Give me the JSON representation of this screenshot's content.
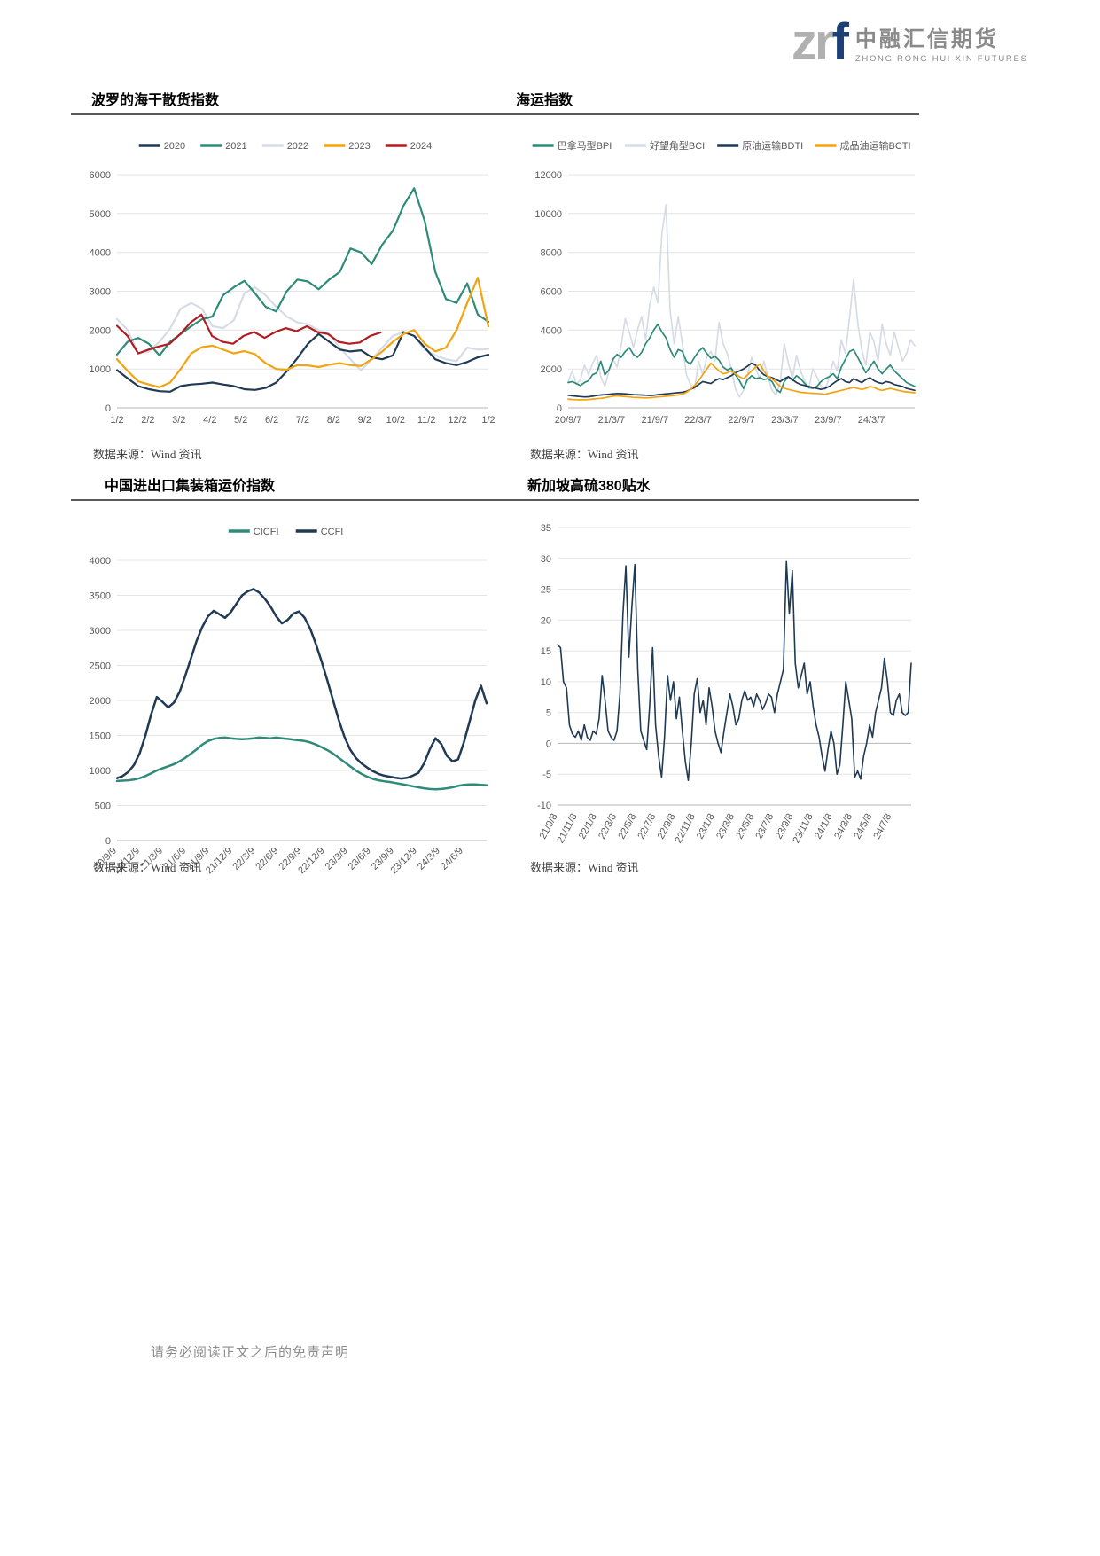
{
  "logo": {
    "mark_zr": "zr",
    "mark_f": "f",
    "cn": "中融汇信期货",
    "en": "ZHONG RONG HUI XIN FUTURES"
  },
  "page": {
    "source_label": "数据来源：Wind 资讯",
    "footer": "请务必阅读正文之后的免责声明"
  },
  "colors": {
    "navy": "#203A53",
    "teal": "#2E8B7A",
    "gray": "#D6DCE5",
    "orange": "#F2A30F",
    "red": "#B01E24"
  },
  "chart_data": [
    {
      "id": "bdi",
      "type": "line",
      "title": "波罗的海干散货指数",
      "ylabel": "",
      "ylim": [
        0,
        6000
      ],
      "yticks": [
        0,
        1000,
        2000,
        3000,
        4000,
        5000,
        6000
      ],
      "xticks": [
        "1/2",
        "2/2",
        "3/2",
        "4/2",
        "5/2",
        "6/2",
        "7/2",
        "8/2",
        "9/2",
        "10/2",
        "11/2",
        "12/2",
        "1/2"
      ],
      "legend_position": "top",
      "grid": true,
      "series": [
        {
          "name": "2020",
          "color": "navy",
          "values": [
            970,
            760,
            560,
            480,
            430,
            415,
            560,
            600,
            620,
            650,
            600,
            560,
            480,
            460,
            510,
            650,
            940,
            1280,
            1650,
            1900,
            1700,
            1500,
            1450,
            1480,
            1300,
            1250,
            1350,
            1950,
            1850,
            1550,
            1250,
            1150,
            1100,
            1180,
            1300,
            1366
          ]
        },
        {
          "name": "2021",
          "color": "teal",
          "values": [
            1374,
            1700,
            1800,
            1650,
            1350,
            1700,
            1900,
            2100,
            2280,
            2350,
            2900,
            3100,
            3266,
            2950,
            2600,
            2480,
            3000,
            3300,
            3250,
            3050,
            3300,
            3500,
            4100,
            4000,
            3700,
            4200,
            4560,
            5200,
            5650,
            4800,
            3500,
            2800,
            2700,
            3200,
            2400,
            2217
          ]
        },
        {
          "name": "2022",
          "color": "gray",
          "behind": true,
          "values": [
            2285,
            2000,
            1400,
            1450,
            1700,
            2040,
            2550,
            2700,
            2550,
            2100,
            2050,
            2250,
            2950,
            3100,
            2900,
            2600,
            2350,
            2200,
            2150,
            2000,
            1900,
            1550,
            1250,
            965,
            1250,
            1550,
            1850,
            1950,
            1850,
            1500,
            1350,
            1250,
            1200,
            1550,
            1500,
            1515
          ]
        },
        {
          "name": "2023",
          "color": "orange",
          "values": [
            1250,
            950,
            680,
            600,
            530,
            650,
            1000,
            1400,
            1560,
            1600,
            1500,
            1400,
            1460,
            1380,
            1150,
            1000,
            980,
            1100,
            1090,
            1050,
            1110,
            1150,
            1100,
            1080,
            1250,
            1450,
            1700,
            1900,
            2000,
            1650,
            1450,
            1550,
            2000,
            2700,
            3346,
            2094
          ]
        },
        {
          "name": "2024",
          "color": "red",
          "span": 0.71,
          "values": [
            2110,
            1850,
            1400,
            1500,
            1580,
            1650,
            1900,
            2200,
            2400,
            1850,
            1700,
            1650,
            1850,
            1950,
            1800,
            1950,
            2050,
            1970,
            2100,
            1950,
            1900,
            1700,
            1650,
            1680,
            1850,
            1940
          ]
        }
      ]
    },
    {
      "id": "shipping-index",
      "type": "line",
      "title": "海运指数",
      "ylabel": "",
      "ylim": [
        0,
        12000
      ],
      "yticks": [
        0,
        2000,
        4000,
        6000,
        8000,
        10000,
        12000
      ],
      "xticks": [
        "20/9/7",
        "21/3/7",
        "21/9/7",
        "22/3/7",
        "22/9/7",
        "23/3/7",
        "23/9/7",
        "24/3/7"
      ],
      "legend_position": "top",
      "grid": true,
      "series": [
        {
          "name": "巴拿马型BPI",
          "color": "teal",
          "values": [
            1300,
            1350,
            1250,
            1150,
            1300,
            1400,
            1700,
            1800,
            2400,
            1700,
            1950,
            2500,
            2750,
            2600,
            2900,
            3100,
            2750,
            2600,
            2850,
            3300,
            3600,
            4000,
            4300,
            3900,
            3600,
            3000,
            2600,
            3000,
            2900,
            2400,
            2250,
            2600,
            2900,
            3100,
            2800,
            2550,
            2650,
            2450,
            2100,
            1950,
            2050,
            1700,
            1400,
            1000,
            1450,
            1650,
            1500,
            1550,
            1450,
            1500,
            1350,
            950,
            800,
            1350,
            1600,
            1400,
            1650,
            1500,
            1250,
            1050,
            1000,
            1100,
            1350,
            1500,
            1600,
            1750,
            1500,
            2100,
            2500,
            2900,
            3000,
            2600,
            2200,
            1800,
            2100,
            2400,
            2000,
            1750,
            2000,
            2200,
            1900,
            1700,
            1500,
            1300,
            1200,
            1100
          ]
        },
        {
          "name": "好望角型BCI",
          "color": "gray",
          "behind": true,
          "values": [
            1350,
            1900,
            1200,
            1450,
            2200,
            1700,
            2300,
            2700,
            1600,
            1100,
            1900,
            2500,
            2100,
            3200,
            4600,
            3900,
            3100,
            4000,
            4700,
            3500,
            5300,
            6200,
            5400,
            9000,
            10450,
            5000,
            3300,
            4700,
            3300,
            1700,
            1200,
            950,
            2400,
            1700,
            2600,
            2900,
            2400,
            4400,
            3300,
            2800,
            2000,
            1000,
            560,
            900,
            1700,
            2600,
            2000,
            1500,
            2400,
            1600,
            900,
            650,
            1300,
            3300,
            2300,
            1500,
            2700,
            1900,
            1400,
            1000,
            2000,
            1600,
            1100,
            950,
            1500,
            2400,
            1900,
            3500,
            2800,
            4600,
            6600,
            4400,
            3000,
            2200,
            3900,
            3400,
            2400,
            4300,
            3300,
            2700,
            3900,
            3100,
            2400,
            2800,
            3500,
            3200
          ]
        },
        {
          "name": "原油运输BDTI",
          "color": "navy",
          "values": [
            650,
            620,
            600,
            580,
            560,
            570,
            600,
            640,
            660,
            680,
            700,
            720,
            740,
            730,
            720,
            700,
            680,
            670,
            660,
            650,
            640,
            650,
            680,
            700,
            720,
            740,
            760,
            780,
            800,
            850,
            950,
            1050,
            1200,
            1350,
            1300,
            1250,
            1400,
            1500,
            1450,
            1550,
            1650,
            1800,
            1900,
            2000,
            2150,
            2300,
            2200,
            1900,
            1700,
            1600,
            1550,
            1450,
            1350,
            1500,
            1600,
            1450,
            1300,
            1200,
            1150,
            1100,
            1050,
            1000,
            950,
            1000,
            1100,
            1250,
            1400,
            1500,
            1350,
            1300,
            1500,
            1400,
            1300,
            1450,
            1550,
            1400,
            1300,
            1250,
            1350,
            1300,
            1200,
            1150,
            1100,
            1000,
            950,
            900
          ]
        },
        {
          "name": "成品油运输BCTI",
          "color": "orange",
          "values": [
            450,
            430,
            420,
            410,
            420,
            430,
            450,
            470,
            490,
            520,
            560,
            600,
            620,
            600,
            580,
            560,
            540,
            530,
            520,
            510,
            520,
            540,
            560,
            580,
            600,
            620,
            640,
            660,
            700,
            800,
            950,
            1150,
            1400,
            1700,
            2000,
            2300,
            2100,
            1900,
            1750,
            1800,
            1900,
            1750,
            1600,
            1500,
            1700,
            1900,
            2100,
            2250,
            1900,
            1600,
            1500,
            1300,
            1100,
            1000,
            950,
            900,
            850,
            800,
            780,
            760,
            750,
            740,
            720,
            700,
            750,
            800,
            850,
            900,
            950,
            1000,
            1050,
            1000,
            950,
            1000,
            1100,
            1050,
            950,
            900,
            950,
            1000,
            950,
            900,
            850,
            820,
            800,
            780
          ]
        }
      ]
    },
    {
      "id": "container-freight",
      "type": "line",
      "title": "中国进出口集装箱运价指数",
      "ylabel": "",
      "ylim": [
        0,
        4000
      ],
      "yticks": [
        0,
        500,
        1000,
        1500,
        2000,
        2500,
        3000,
        3500,
        4000
      ],
      "xticks": [
        "20/9/9",
        "20/12/9",
        "21/3/9",
        "21/6/9",
        "21/9/9",
        "21/12/9",
        "22/3/9",
        "22/6/9",
        "22/9/9",
        "22/12/9",
        "23/3/9",
        "23/6/9",
        "23/9/9",
        "23/12/9",
        "24/3/9",
        "24/6/9"
      ],
      "legend_position": "top",
      "grid": true,
      "series": [
        {
          "name": "CICFI",
          "color": "teal",
          "values": [
            850,
            855,
            860,
            870,
            890,
            920,
            960,
            1000,
            1030,
            1060,
            1090,
            1130,
            1180,
            1240,
            1300,
            1370,
            1420,
            1450,
            1465,
            1470,
            1460,
            1450,
            1445,
            1450,
            1460,
            1470,
            1465,
            1460,
            1470,
            1460,
            1450,
            1440,
            1430,
            1420,
            1400,
            1370,
            1330,
            1290,
            1240,
            1180,
            1120,
            1060,
            1000,
            950,
            910,
            880,
            860,
            845,
            835,
            820,
            805,
            790,
            775,
            760,
            745,
            735,
            730,
            735,
            745,
            760,
            780,
            795,
            800,
            800,
            795,
            790
          ]
        },
        {
          "name": "CCFI",
          "color": "navy",
          "values": [
            890,
            920,
            980,
            1080,
            1250,
            1500,
            1800,
            2050,
            1980,
            1900,
            1970,
            2120,
            2350,
            2600,
            2850,
            3050,
            3200,
            3280,
            3230,
            3180,
            3260,
            3380,
            3500,
            3560,
            3590,
            3540,
            3450,
            3340,
            3200,
            3100,
            3150,
            3240,
            3270,
            3180,
            3020,
            2800,
            2550,
            2280,
            2000,
            1720,
            1480,
            1300,
            1180,
            1100,
            1040,
            990,
            950,
            925,
            910,
            895,
            885,
            895,
            925,
            965,
            1100,
            1300,
            1460,
            1380,
            1210,
            1130,
            1160,
            1400,
            1700,
            2000,
            2210,
            1960
          ]
        }
      ]
    },
    {
      "id": "hsfo-380",
      "type": "line",
      "title": "新加坡高硫380贴水",
      "ylabel": "",
      "ylim": [
        -10,
        35
      ],
      "yticks": [
        -10,
        -5,
        0,
        5,
        10,
        15,
        20,
        25,
        30,
        35
      ],
      "xticks": [
        "21/9/8",
        "21/11/8",
        "22/1/8",
        "22/3/8",
        "22/5/8",
        "22/7/8",
        "22/9/8",
        "22/11/8",
        "23/1/8",
        "23/3/8",
        "23/5/8",
        "23/7/8",
        "23/9/8",
        "23/11/8",
        "24/1/8",
        "24/3/8",
        "24/5/8",
        "24/7/8"
      ],
      "legend_position": "none",
      "grid": true,
      "series": [
        {
          "name": "新加坡高硫380贴水",
          "color": "navy",
          "values": [
            16,
            15.5,
            10,
            9,
            3,
            1.5,
            1,
            2,
            0.5,
            3,
            1,
            0.5,
            2,
            1.5,
            4,
            11,
            7,
            2,
            1,
            0.5,
            2,
            8,
            21,
            28.8,
            14,
            22,
            29,
            12,
            2,
            0.5,
            -1,
            6,
            15.5,
            3,
            -2,
            -5.5,
            1,
            11,
            7,
            10,
            4,
            7.5,
            2,
            -3,
            -6,
            0,
            8,
            10.5,
            5,
            7,
            3,
            9,
            6,
            2,
            0,
            -1.5,
            2,
            5,
            8,
            6,
            3,
            4,
            7,
            8.5,
            7,
            7.5,
            6,
            8,
            7,
            5.5,
            6.5,
            8,
            7.5,
            5,
            8,
            10,
            12,
            29.5,
            21,
            28,
            13,
            9,
            11,
            13,
            8,
            10,
            6,
            3,
            1,
            -2,
            -4.5,
            -1,
            2,
            0,
            -5,
            -3.5,
            3,
            10,
            7,
            4,
            -5.5,
            -4.5,
            -5.8,
            -2,
            0,
            3,
            1,
            5,
            7,
            9,
            13.8,
            10,
            5,
            4.5,
            7,
            8,
            5,
            4.5,
            5,
            13
          ]
        }
      ]
    }
  ]
}
